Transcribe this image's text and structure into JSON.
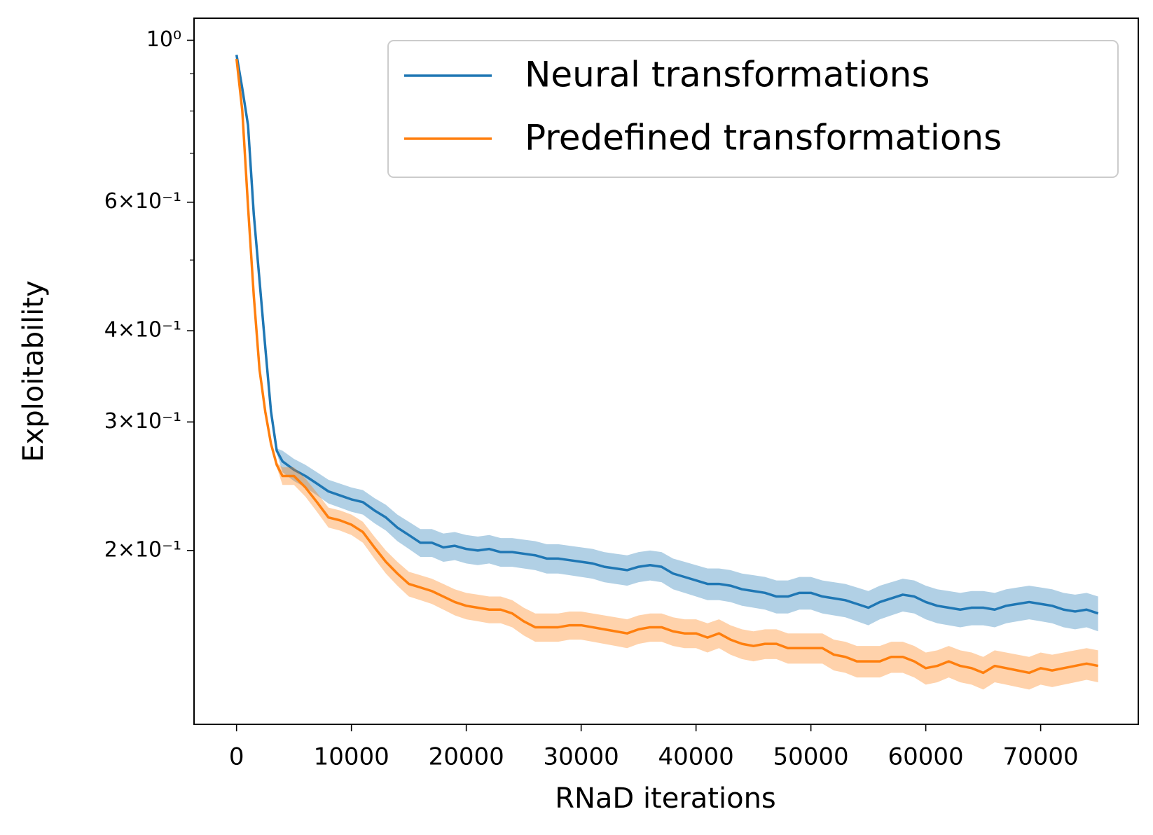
{
  "chart_data": {
    "type": "line",
    "x_label": "RNaD iterations",
    "y_label": "Exploitability",
    "log_y": true,
    "grid": false,
    "legend_loc": "upper right",
    "xlim": [
      -3700,
      78500
    ],
    "ylim": [
      0.1156,
      1.072
    ],
    "xticks": [
      0,
      10000,
      20000,
      30000,
      40000,
      50000,
      60000,
      70000
    ],
    "yticks": [
      {
        "value": 1,
        "label": "10⁰"
      },
      {
        "value": 0.6,
        "label": "6×10⁻¹"
      },
      {
        "value": 0.4,
        "label": "4×10⁻¹"
      },
      {
        "value": 0.3,
        "label": "3×10⁻¹"
      },
      {
        "value": 0.2,
        "label": "2×10⁻¹"
      }
    ],
    "yminorticks": [
      0.9,
      0.8,
      0.7,
      0.5
    ],
    "x": [
      0,
      500,
      1000,
      1500,
      2000,
      2500,
      3000,
      3500,
      4000,
      5000,
      6000,
      7000,
      8000,
      9000,
      10000,
      11000,
      12000,
      13000,
      14000,
      15000,
      16000,
      17000,
      18000,
      19000,
      20000,
      21000,
      22000,
      23000,
      24000,
      25000,
      26000,
      27000,
      28000,
      29000,
      30000,
      31000,
      32000,
      33000,
      34000,
      35000,
      36000,
      37000,
      38000,
      39000,
      40000,
      41000,
      42000,
      43000,
      44000,
      45000,
      46000,
      47000,
      48000,
      49000,
      50000,
      51000,
      52000,
      53000,
      54000,
      55000,
      56000,
      57000,
      58000,
      59000,
      60000,
      61000,
      62000,
      63000,
      64000,
      65000,
      66000,
      67000,
      68000,
      69000,
      70000,
      71000,
      72000,
      73000,
      74000,
      75000
    ],
    "series": [
      {
        "name": "Neural transformations",
        "color": "#1f77b4",
        "values": [
          0.955,
          0.859,
          0.765,
          0.578,
          0.469,
          0.38,
          0.31,
          0.274,
          0.265,
          0.258,
          0.253,
          0.247,
          0.241,
          0.238,
          0.235,
          0.233,
          0.227,
          0.222,
          0.215,
          0.21,
          0.205,
          0.205,
          0.202,
          0.203,
          0.201,
          0.2,
          0.201,
          0.199,
          0.199,
          0.198,
          0.197,
          0.195,
          0.195,
          0.194,
          0.193,
          0.192,
          0.19,
          0.189,
          0.188,
          0.19,
          0.191,
          0.19,
          0.186,
          0.184,
          0.182,
          0.18,
          0.18,
          0.179,
          0.177,
          0.176,
          0.175,
          0.173,
          0.173,
          0.175,
          0.175,
          0.173,
          0.172,
          0.171,
          0.169,
          0.167,
          0.17,
          0.172,
          0.174,
          0.173,
          0.17,
          0.168,
          0.167,
          0.166,
          0.167,
          0.167,
          0.166,
          0.168,
          0.169,
          0.17,
          0.169,
          0.168,
          0.166,
          0.165,
          0.166,
          0.164
        ],
        "errors": [
          0.002,
          0.002,
          0.002,
          0.002,
          0.002,
          0.002,
          0.002,
          0.002,
          0.009,
          0.009,
          0.009,
          0.009,
          0.009,
          0.009,
          0.009,
          0.009,
          0.009,
          0.009,
          0.009,
          0.009,
          0.009,
          0.009,
          0.009,
          0.009,
          0.009,
          0.009,
          0.009,
          0.009,
          0.009,
          0.009,
          0.009,
          0.009,
          0.009,
          0.009,
          0.009,
          0.009,
          0.009,
          0.009,
          0.009,
          0.009,
          0.009,
          0.009,
          0.009,
          0.009,
          0.009,
          0.009,
          0.009,
          0.009,
          0.009,
          0.009,
          0.009,
          0.009,
          0.009,
          0.009,
          0.009,
          0.009,
          0.009,
          0.009,
          0.009,
          0.009,
          0.009,
          0.009,
          0.009,
          0.009,
          0.009,
          0.009,
          0.009,
          0.009,
          0.009,
          0.009,
          0.009,
          0.009,
          0.009,
          0.009,
          0.009,
          0.009,
          0.009,
          0.009,
          0.009,
          0.009
        ]
      },
      {
        "name": "Predefined transformations",
        "color": "#ff7f0e",
        "values": [
          0.943,
          0.801,
          0.592,
          0.447,
          0.354,
          0.31,
          0.28,
          0.262,
          0.253,
          0.253,
          0.244,
          0.233,
          0.222,
          0.22,
          0.217,
          0.212,
          0.202,
          0.193,
          0.186,
          0.18,
          0.178,
          0.176,
          0.173,
          0.17,
          0.168,
          0.167,
          0.166,
          0.166,
          0.164,
          0.16,
          0.157,
          0.157,
          0.157,
          0.158,
          0.158,
          0.157,
          0.156,
          0.155,
          0.154,
          0.156,
          0.157,
          0.157,
          0.155,
          0.154,
          0.154,
          0.152,
          0.154,
          0.151,
          0.149,
          0.148,
          0.149,
          0.149,
          0.147,
          0.147,
          0.147,
          0.147,
          0.144,
          0.143,
          0.141,
          0.141,
          0.141,
          0.143,
          0.143,
          0.141,
          0.138,
          0.139,
          0.141,
          0.139,
          0.138,
          0.136,
          0.139,
          0.138,
          0.137,
          0.136,
          0.138,
          0.137,
          0.138,
          0.139,
          0.14,
          0.139
        ],
        "errors": [
          0.002,
          0.002,
          0.002,
          0.002,
          0.002,
          0.002,
          0.002,
          0.002,
          0.007,
          0.007,
          0.007,
          0.007,
          0.007,
          0.007,
          0.007,
          0.007,
          0.007,
          0.007,
          0.007,
          0.007,
          0.007,
          0.007,
          0.007,
          0.007,
          0.007,
          0.007,
          0.007,
          0.007,
          0.007,
          0.007,
          0.007,
          0.007,
          0.007,
          0.007,
          0.007,
          0.007,
          0.007,
          0.007,
          0.007,
          0.007,
          0.007,
          0.007,
          0.007,
          0.007,
          0.007,
          0.007,
          0.007,
          0.007,
          0.007,
          0.007,
          0.007,
          0.007,
          0.007,
          0.007,
          0.007,
          0.007,
          0.007,
          0.007,
          0.007,
          0.007,
          0.007,
          0.007,
          0.007,
          0.007,
          0.007,
          0.007,
          0.007,
          0.007,
          0.007,
          0.007,
          0.007,
          0.007,
          0.007,
          0.007,
          0.007,
          0.007,
          0.007,
          0.007,
          0.007,
          0.007
        ]
      }
    ]
  }
}
